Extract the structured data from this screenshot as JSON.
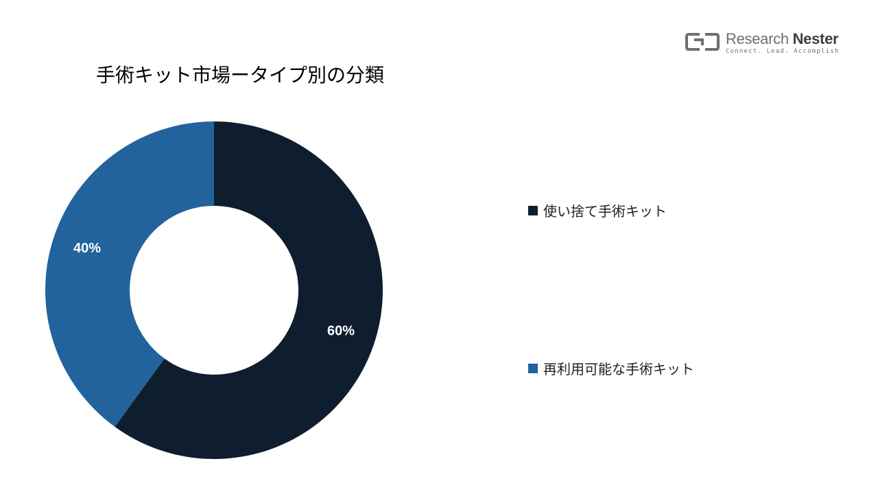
{
  "logo": {
    "name_light": "Research ",
    "name_bold": "Nester",
    "tagline": "Connect. Lead. Accomplish"
  },
  "chart_data": {
    "type": "pie",
    "title": "手術キット市場ータイプ別の分類",
    "categories": [
      "使い捨て手術キット",
      "再利用可能な手術キット"
    ],
    "values": [
      60,
      40
    ],
    "labels": [
      "60%",
      "40%"
    ],
    "colors": [
      "#0f1e2f",
      "#22639d"
    ],
    "donut": true,
    "legend_position": "right"
  }
}
